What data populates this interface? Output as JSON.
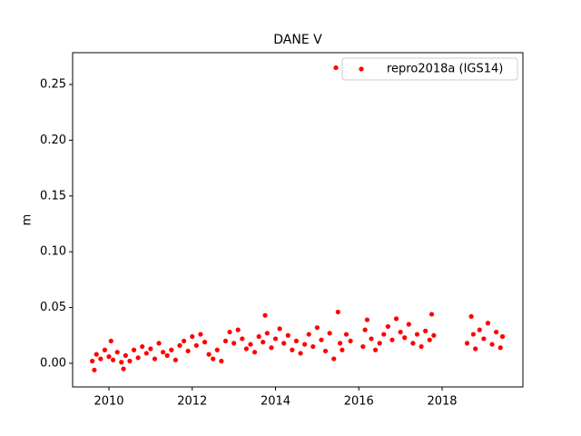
{
  "chart_data": {
    "type": "scatter",
    "title": "DANE V",
    "ylabel": "m",
    "series": [
      {
        "name": "repro2018a (IGS14)",
        "color": "#ff0000",
        "x": [
          2009.6,
          2009.65,
          2009.7,
          2009.8,
          2009.9,
          2010.0,
          2010.05,
          2010.1,
          2010.2,
          2010.3,
          2010.35,
          2010.4,
          2010.5,
          2010.6,
          2010.7,
          2010.8,
          2010.9,
          2011.0,
          2011.1,
          2011.2,
          2011.3,
          2011.4,
          2011.5,
          2011.6,
          2011.7,
          2011.8,
          2011.9,
          2012.0,
          2012.1,
          2012.2,
          2012.3,
          2012.4,
          2012.5,
          2012.6,
          2012.7,
          2012.8,
          2012.9,
          2013.0,
          2013.1,
          2013.2,
          2013.3,
          2013.4,
          2013.5,
          2013.6,
          2013.7,
          2013.75,
          2013.8,
          2013.9,
          2014.0,
          2014.1,
          2014.2,
          2014.3,
          2014.4,
          2014.5,
          2014.6,
          2014.7,
          2014.8,
          2014.9,
          2015.0,
          2015.1,
          2015.2,
          2015.3,
          2015.4,
          2015.45,
          2015.5,
          2015.55,
          2015.6,
          2015.7,
          2015.8,
          2016.1,
          2016.15,
          2016.2,
          2016.3,
          2016.4,
          2016.5,
          2016.6,
          2016.7,
          2016.8,
          2016.9,
          2017.0,
          2017.1,
          2017.2,
          2017.3,
          2017.4,
          2017.5,
          2017.6,
          2017.7,
          2017.75,
          2017.8,
          2018.6,
          2018.7,
          2018.75,
          2018.8,
          2018.9,
          2019.0,
          2019.1,
          2019.2,
          2019.3,
          2019.4,
          2019.45
        ],
        "values": [
          0.002,
          -0.006,
          0.008,
          0.004,
          0.012,
          0.006,
          0.02,
          0.003,
          0.01,
          0.001,
          -0.005,
          0.007,
          0.002,
          0.012,
          0.005,
          0.015,
          0.009,
          0.013,
          0.004,
          0.018,
          0.01,
          0.007,
          0.012,
          0.003,
          0.016,
          0.02,
          0.011,
          0.024,
          0.016,
          0.026,
          0.019,
          0.008,
          0.004,
          0.012,
          0.002,
          0.02,
          0.028,
          0.018,
          0.03,
          0.022,
          0.013,
          0.017,
          0.01,
          0.024,
          0.019,
          0.043,
          0.027,
          0.014,
          0.022,
          0.031,
          0.018,
          0.025,
          0.012,
          0.02,
          0.009,
          0.017,
          0.026,
          0.015,
          0.032,
          0.021,
          0.011,
          0.027,
          0.004,
          0.265,
          0.046,
          0.018,
          0.012,
          0.026,
          0.02,
          0.015,
          0.03,
          0.039,
          0.022,
          0.012,
          0.018,
          0.026,
          0.033,
          0.021,
          0.04,
          0.028,
          0.023,
          0.035,
          0.018,
          0.026,
          0.015,
          0.029,
          0.021,
          0.044,
          0.025,
          0.018,
          0.042,
          0.026,
          0.013,
          0.03,
          0.022,
          0.036,
          0.017,
          0.028,
          0.014,
          0.024
        ]
      }
    ],
    "xlim": [
      2009.128,
      2019.94
    ],
    "xticks": [
      2010,
      2012,
      2014,
      2016,
      2018
    ],
    "ylim": [
      -0.0212,
      0.2785
    ],
    "yticks": [
      {
        "value": 0,
        "label": "0.00"
      },
      {
        "value": 0.05,
        "label": "0.05"
      },
      {
        "value": 0.1,
        "label": "0.10"
      },
      {
        "value": 0.15,
        "label": "0.15"
      },
      {
        "value": 0.2,
        "label": "0.20"
      },
      {
        "value": 0.25,
        "label": "0.25"
      }
    ],
    "legend": "upper right"
  }
}
